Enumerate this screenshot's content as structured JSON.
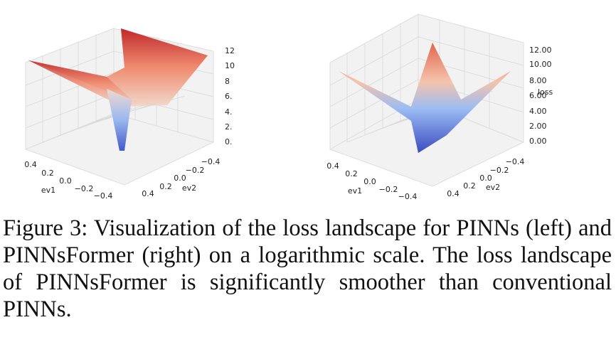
{
  "figures": [
    {
      "ev1_label": "ev1",
      "ev2_label": "ev2",
      "ev1_ticks": [
        "0.4",
        "0.2",
        "0.0",
        "−0.2",
        "−0.4"
      ],
      "ev2_ticks": [
        "−0.4",
        "−0.2",
        "0.0",
        "0.2",
        "0.4"
      ],
      "loss_ticks": [
        "12",
        "10",
        "8",
        "6.",
        "4.",
        "2.",
        "0."
      ]
    },
    {
      "ev1_label": "ev1",
      "ev2_label": "ev2",
      "loss_label": "loss",
      "ev1_ticks": [
        "0.4",
        "0.2",
        "0.0",
        "−0.2",
        "−0.4"
      ],
      "ev2_ticks": [
        "−0.4",
        "−0.2",
        "0.0",
        "0.2",
        "0.4"
      ],
      "loss_ticks": [
        "12.00",
        "10.00",
        "8.00",
        "6.00",
        "4.00",
        "2.00",
        "0.00"
      ]
    }
  ],
  "caption": {
    "label": "Figure 3:",
    "text": "Visualization of the loss landscape for PINNs (left) and PINNsFormer (right) on a logarithmic scale. The loss landscape of PINNsFormer is significantly smoother than conventional PINNs."
  }
}
